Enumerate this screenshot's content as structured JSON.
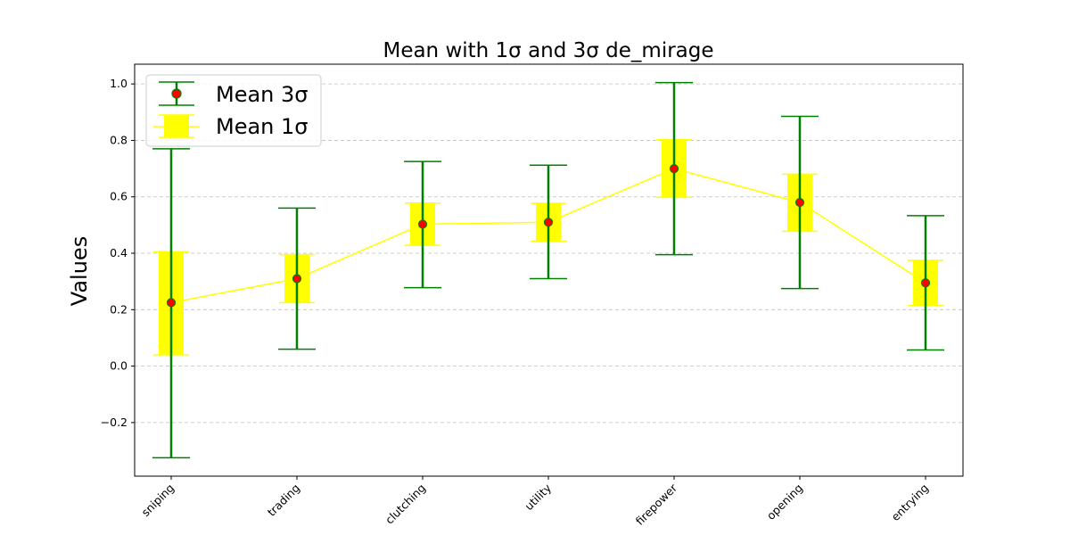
{
  "chart_data": {
    "type": "errorbar",
    "title": "Mean with 1σ and 3σ de_mirage",
    "xlabel": "",
    "ylabel": "Values",
    "categories": [
      "sniping",
      "trading",
      "clutching",
      "utility",
      "firepower",
      "opening",
      "entrying"
    ],
    "mean": [
      0.225,
      0.31,
      0.503,
      0.51,
      0.7,
      0.58,
      0.295
    ],
    "sigma1_low": [
      0.04,
      0.225,
      0.428,
      0.443,
      0.598,
      0.478,
      0.215
    ],
    "sigma1_high": [
      0.405,
      0.395,
      0.578,
      0.577,
      0.802,
      0.68,
      0.375
    ],
    "sigma3_low": [
      -0.325,
      0.06,
      0.278,
      0.31,
      0.395,
      0.275,
      0.057
    ],
    "sigma3_high": [
      0.77,
      0.56,
      0.725,
      0.712,
      1.005,
      0.885,
      0.533
    ],
    "ylim": [
      -0.39,
      1.07
    ],
    "yticks": [
      -0.2,
      0.0,
      0.2,
      0.4,
      0.6,
      0.8,
      1.0
    ],
    "ytick_labels": [
      "−0.2",
      "0.0",
      "0.2",
      "0.4",
      "0.6",
      "0.8",
      "1.0"
    ],
    "grid": "y-dashed",
    "legend": {
      "placement": "top-left",
      "entries": [
        "Mean 3σ",
        "Mean 1σ"
      ]
    },
    "colors": {
      "sigma3": "#008000",
      "sigma1": "#ffff00",
      "mean_line": "#ffff00",
      "mean_marker": "#ff0000",
      "mean_marker_edge": "#008000",
      "grid": "#b0b0b0"
    }
  }
}
